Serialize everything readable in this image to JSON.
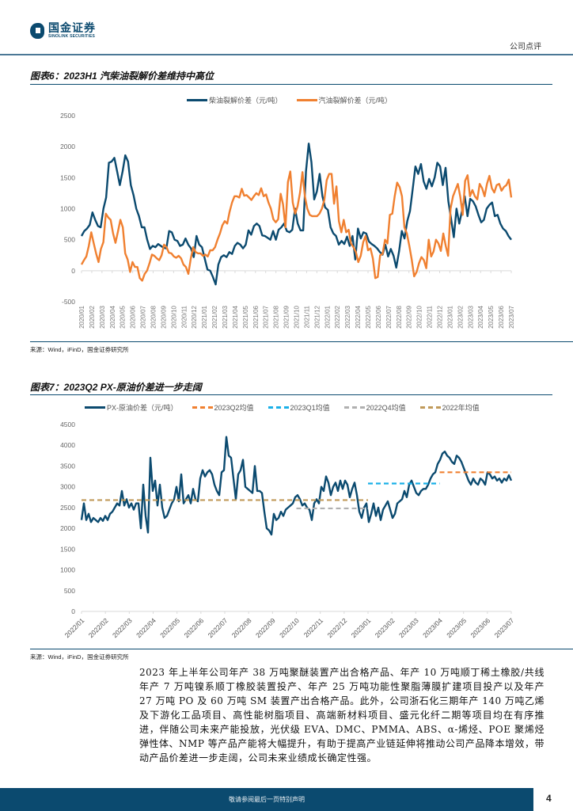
{
  "header": {
    "logo_cn": "国金证券",
    "logo_en": "SINOLINK SECURITIES",
    "report_type": "公司点评"
  },
  "figure6": {
    "title": "图表6：2023H1 汽柴油裂解价差维持中高位",
    "source": "来源：Wind，iFinD，国金证券研究所"
  },
  "figure7": {
    "title": "图表7：2023Q2 PX-原油价差进一步走阔",
    "source": "来源：Wind，iFinD，国金证券研究所"
  },
  "body_text": "2023 年上半年公司年产 38 万吨聚醚装置产出合格产品、年产 10 万吨顺丁稀土橡胶/共线年产 7 万吨镍系顺丁橡胶装置投产、年产 25 万吨功能性聚脂薄膜扩建项目投产以及年产 27 万吨 PO 及 60 万吨 SM 装置产出合格产品。此外，公司浙石化三期年产 140 万吨乙烯及下游化工品项目、高性能树脂项目、高端新材料项目、盛元化纤二期等项目均在有序推进，伴随公司未来产能投放，光伏级 EVA、DMC、PMMA、ABS、α-烯烃、POE 聚烯烃弹性体、NMP 等产品产能将大幅提升，有助于提高产业链延伸将推动公司产品降本增效，带动产品价差进一步走阔，公司未来业绩成长确定性强。",
  "footer": {
    "disclaimer": "敬请参阅最后一页特别声明",
    "page_number": "4"
  },
  "chart_data": [
    {
      "type": "line",
      "title": "2023H1 汽柴油裂解价差维持中高位",
      "xlabel": "",
      "ylabel": "",
      "ylim": [
        -500,
        2500
      ],
      "yticks": [
        "2500",
        "2000",
        "1500",
        "1000",
        "500",
        "0",
        "-500"
      ],
      "ytick_values": [
        2500,
        2000,
        1500,
        1000,
        500,
        0,
        -500
      ],
      "categories": [
        "2020/01",
        "2020/02",
        "2020/03",
        "2020/04",
        "2020/05",
        "2020/06",
        "2020/07",
        "2020/08",
        "2020/09",
        "2020/10",
        "2020/11",
        "2020/12",
        "2021/01",
        "2021/02",
        "2021/03",
        "2021/04",
        "2021/05",
        "2021/06",
        "2021/07",
        "2021/08",
        "2021/09",
        "2021/10",
        "2021/11",
        "2021/12",
        "2022/01",
        "2022/02",
        "2022/03",
        "2022/04",
        "2022/05",
        "2022/06",
        "2022/07",
        "2022/08",
        "2022/09",
        "2022/10",
        "2022/11",
        "2022/12",
        "2023/01",
        "2023/02",
        "2023/03",
        "2023/04",
        "2023/05",
        "2023/06",
        "2023/07"
      ],
      "legend_position": "top",
      "grid": false,
      "series": [
        {
          "name": "柴油裂解价差（元/吨）",
          "color": "#0b4a6f",
          "values": [
            560,
            640,
            680,
            740,
            940,
            820,
            720,
            700,
            1000,
            1180,
            1740,
            1760,
            1820,
            1600,
            1380,
            1600,
            1860,
            1760,
            1380,
            1220,
            1000,
            880,
            700,
            700,
            500,
            350,
            400,
            380,
            430,
            400,
            370,
            360,
            640,
            620,
            500,
            480,
            400,
            420,
            520,
            420,
            360,
            220,
            560,
            420,
            380,
            200,
            20,
            0,
            -100,
            -220,
            100,
            220,
            250,
            220,
            300,
            270,
            400,
            450,
            420,
            360,
            420,
            650,
            580,
            720,
            760,
            720,
            570,
            560,
            530,
            500,
            640,
            500,
            660,
            700,
            760,
            640,
            620,
            660,
            1000,
            760,
            650,
            650,
            1600,
            2050,
            1750,
            1150,
            1280,
            1560,
            1200,
            1020,
            980,
            700,
            600,
            560,
            420,
            480,
            430,
            550,
            400,
            560,
            180,
            680,
            520,
            620,
            600,
            470,
            430,
            400,
            360,
            300,
            260,
            420,
            230,
            350,
            240,
            50,
            310,
            640,
            520,
            800,
            960,
            1320,
            1680,
            1560,
            1720,
            1440,
            1320,
            1480,
            1360,
            1500,
            1740,
            1680,
            1380,
            1660,
            1120,
            840,
            540,
            1000,
            760,
            960,
            1200,
            880,
            1160,
            1120,
            1040,
            900,
            780,
            820,
            1000,
            1060,
            1100,
            880,
            900,
            760,
            680,
            640,
            560,
            500
          ]
        },
        {
          "name": "汽油裂解价差（元/吨）",
          "color": "#f08030",
          "values": [
            100,
            170,
            230,
            400,
            620,
            450,
            280,
            140,
            350,
            460,
            920,
            860,
            820,
            600,
            450,
            630,
            820,
            700,
            280,
            180,
            -20,
            140,
            60,
            60,
            -120,
            -160,
            -50,
            0,
            120,
            260,
            240,
            200,
            170,
            250,
            420,
            380,
            290,
            280,
            230,
            210,
            240,
            200,
            100,
            60,
            -50,
            200,
            380,
            300,
            280,
            280,
            240,
            260,
            230,
            330,
            330,
            380,
            500,
            600,
            730,
            800,
            760,
            950,
            1100,
            1200,
            1200,
            1180,
            1320,
            1210,
            1220,
            1180,
            1140,
            1200,
            1250,
            1220,
            1330,
            1200,
            1230,
            1100,
            1000,
            830,
            780,
            830,
            1240,
            1070,
            700,
            1430,
            1600,
            1100,
            920,
            1040,
            1260,
            1590,
            1200,
            1000,
            900,
            880,
            880,
            880,
            920,
            1000,
            1140,
            1460,
            1560,
            1560,
            1080,
            1360,
            800,
            620,
            820,
            620,
            660,
            440,
            380,
            300,
            140,
            240,
            460,
            560,
            330,
            360,
            200,
            -120,
            -100,
            250,
            270,
            500,
            440,
            900,
            920,
            1200,
            1420,
            1350,
            1200,
            700,
            600,
            400,
            180,
            -90,
            -20,
            120,
            220,
            170,
            40,
            500,
            230,
            310,
            500,
            440,
            320,
            600,
            400,
            240,
            1000,
            1200,
            1300,
            1400,
            1190,
            900,
            1450,
            1540,
            1200,
            1300,
            1200,
            1150,
            1400,
            1330,
            1200,
            1400,
            1530,
            1330,
            1260,
            1380,
            1400,
            1290,
            1350,
            1380,
            1470,
            1180
          ]
        }
      ]
    },
    {
      "type": "line",
      "title": "2023Q2 PX-原油价差进一步走阔",
      "xlabel": "",
      "ylabel": "",
      "ylim": [
        0,
        4500
      ],
      "yticks": [
        "4500",
        "4000",
        "3500",
        "3000",
        "2500",
        "2000",
        "1500",
        "1000",
        "500",
        "0"
      ],
      "ytick_values": [
        4500,
        4000,
        3500,
        3000,
        2500,
        2000,
        1500,
        1000,
        500,
        0
      ],
      "categories": [
        "2022/01",
        "2022/02",
        "2022/03",
        "2022/04",
        "2022/05",
        "2022/06",
        "2022/07",
        "2022/08",
        "2022/09",
        "2022/10",
        "2022/11",
        "2022/12",
        "2023/01",
        "2023/02",
        "2023/03",
        "2023/04",
        "2023/05",
        "2023/06",
        "2023/07"
      ],
      "legend_position": "top",
      "grid": false,
      "series": [
        {
          "name": "PX-原油价差（元/吨）",
          "color": "#0b4a6f",
          "style": "solid",
          "values": [
            2200,
            2600,
            2200,
            2350,
            2150,
            2250,
            2200,
            2150,
            2250,
            2180,
            2300,
            2200,
            2350,
            2400,
            2500,
            2600,
            2550,
            2900,
            2550,
            2700,
            2500,
            2600,
            2450,
            2600,
            2600,
            2000,
            3050,
            2300,
            1900,
            3700,
            2900,
            3150,
            2550,
            3050,
            2500,
            2250,
            2300,
            2450,
            2600,
            2700,
            3000,
            2650,
            3300,
            2600,
            2700,
            2800,
            2600,
            2950,
            2700,
            2650,
            3200,
            3400,
            3250,
            3350,
            3400,
            3300,
            3050,
            2900,
            2800,
            3350,
            3400,
            4200,
            3750,
            3700,
            3200,
            2700,
            3300,
            3400,
            3650,
            3000,
            2950,
            2900,
            2850,
            3500,
            2900,
            2900,
            2850,
            2400,
            2000,
            1950,
            1850,
            2350,
            2200,
            2250,
            2400,
            2300,
            2450,
            2500,
            2550,
            2600,
            2750,
            2800,
            2700,
            2550,
            2600,
            2500,
            2450,
            2200,
            2600,
            2700,
            2600,
            3000,
            2900,
            3250,
            3100,
            2800,
            3000,
            3100,
            2900,
            3150,
            2950,
            3150,
            3050,
            2750,
            2950,
            3100,
            2800,
            2400,
            2250,
            2500,
            2600,
            2150,
            2350,
            2600,
            2300,
            2500,
            2200,
            2450,
            2550,
            2650,
            2450,
            2250,
            2350,
            2600,
            2650,
            2700,
            2900,
            2750,
            3050,
            3150,
            3000,
            2850,
            2800,
            2900,
            2950,
            2950,
            3050,
            3200,
            3300,
            3350,
            3550,
            3650,
            3800,
            3850,
            3750,
            3700,
            3600,
            3550,
            3750,
            3700,
            3600,
            3450,
            3300,
            3150,
            3050,
            3200,
            3100,
            3050,
            3200,
            3150,
            3050,
            3350,
            3300,
            3200,
            3250,
            3150,
            3200,
            3100,
            3200,
            3150,
            3280,
            3150
          ]
        },
        {
          "name": "2023Q2均值",
          "color": "#f08030",
          "style": "dashed",
          "value": 3350,
          "x_range": [
            "2023/04",
            "2023/07"
          ]
        },
        {
          "name": "2023Q1均值",
          "color": "#1ab0e8",
          "style": "dashed",
          "value": 3080,
          "x_range": [
            "2023/01",
            "2023/04"
          ]
        },
        {
          "name": "2022Q4均值",
          "color": "#b0b0b0",
          "style": "dashed",
          "value": 2480,
          "x_range": [
            "2022/10",
            "2023/01"
          ]
        },
        {
          "name": "2022年均值",
          "color": "#c09a5a",
          "style": "dashed",
          "value": 2680,
          "x_range": [
            "2022/01",
            "2023/01"
          ]
        }
      ]
    }
  ]
}
